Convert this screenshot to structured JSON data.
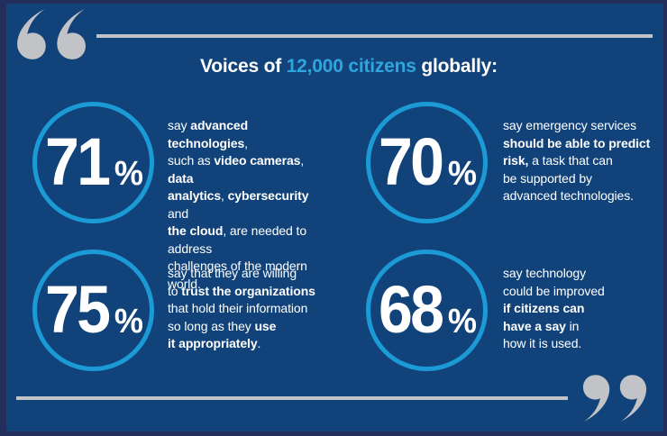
{
  "colors": {
    "background": "#11437A",
    "frame": "#232E5C",
    "accent": "#2FA5DE",
    "circle": "#1C9AD6",
    "gray": "#C1C3C6",
    "text": "#FFFFFF"
  },
  "title": {
    "lines": [
      [
        {
          "t": "Voices of ",
          "hl": false
        },
        {
          "t": "12,000 citizens",
          "hl": true
        },
        {
          "t": " globally:",
          "hl": false
        }
      ]
    ]
  },
  "stats": [
    {
      "value": "71",
      "unit": "%",
      "lines": [
        [
          {
            "t": "say ",
            "b": false
          },
          {
            "t": "advanced technologies",
            "b": true
          },
          {
            "t": ",",
            "b": false
          }
        ],
        [
          {
            "t": "such as ",
            "b": false
          },
          {
            "t": "video cameras",
            "b": true
          },
          {
            "t": ", ",
            "b": false
          },
          {
            "t": "data",
            "b": true
          }
        ],
        [
          {
            "t": "analytics",
            "b": true
          },
          {
            "t": ", ",
            "b": false
          },
          {
            "t": "cybersecurity",
            "b": true
          },
          {
            "t": " and",
            "b": false
          }
        ],
        [
          {
            "t": "the cloud",
            "b": true
          },
          {
            "t": ", are needed to address",
            "b": false
          }
        ],
        [
          {
            "t": "challenges of the modern world.",
            "b": false
          }
        ]
      ]
    },
    {
      "value": "70",
      "unit": "%",
      "lines": [
        [
          {
            "t": "say emergency services",
            "b": false
          }
        ],
        [
          {
            "t": "should be able to predict",
            "b": true
          }
        ],
        [
          {
            "t": "risk,",
            "b": true
          },
          {
            "t": " a task that can",
            "b": false
          }
        ],
        [
          {
            "t": "be supported by",
            "b": false
          }
        ],
        [
          {
            "t": "advanced technologies.",
            "b": false
          }
        ]
      ]
    },
    {
      "value": "75",
      "unit": "%",
      "lines": [
        [
          {
            "t": "say that they are willing",
            "b": false
          }
        ],
        [
          {
            "t": "to ",
            "b": false
          },
          {
            "t": "trust the organizations",
            "b": true
          }
        ],
        [
          {
            "t": "that hold their information",
            "b": false
          }
        ],
        [
          {
            "t": "so long as they ",
            "b": false
          },
          {
            "t": "use",
            "b": true
          }
        ],
        [
          {
            "t": "it appropriately",
            "b": true
          },
          {
            "t": ".",
            "b": false
          }
        ]
      ]
    },
    {
      "value": "68",
      "unit": "%",
      "lines": [
        [
          {
            "t": "say technology",
            "b": false
          }
        ],
        [
          {
            "t": "could be improved",
            "b": false
          }
        ],
        [
          {
            "t": "if citizens can",
            "b": true
          }
        ],
        [
          {
            "t": "have a say",
            "b": true
          },
          {
            "t": " in",
            "b": false
          }
        ],
        [
          {
            "t": "how it is used.",
            "b": false
          }
        ]
      ]
    }
  ],
  "chart_data": {
    "type": "table",
    "title": "Voices of 12,000 citizens globally:",
    "categories": [
      "say advanced technologies, such as video cameras, data analytics, cybersecurity and the cloud, are needed to address challenges of the modern world.",
      "say emergency services should be able to predict risk, a task that can be supported by advanced technologies.",
      "say that they are willing to trust the organizations that hold their information so long as they use it appropriately.",
      "say technology could be improved if citizens can have a say in how it is used."
    ],
    "values": [
      71,
      70,
      75,
      68
    ],
    "unit": "%",
    "legend_position": "none",
    "grid": false
  }
}
